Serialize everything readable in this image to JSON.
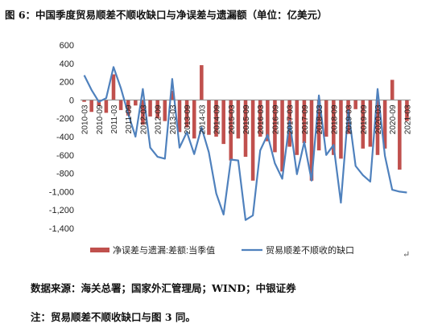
{
  "title": "图 6：中国季度贸易顺差不顺收缺口与净误差与遗漏额（单位：亿美元）",
  "source": "数据来源：海关总署；国家外汇管理局；WIND；中银证券",
  "note": "注：贸易顺差不顺收缺口与图 3 同。",
  "chart_data": {
    "type": "bar+line",
    "ylim": [
      -1400,
      600
    ],
    "yticks": [
      600,
      400,
      200,
      0,
      -200,
      -400,
      -600,
      -800,
      -1000,
      -1200,
      -1400
    ],
    "categories": [
      "2010-03",
      "2010-06",
      "2010-09",
      "2010-12",
      "2011-03",
      "2011-06",
      "2011-09",
      "2011-12",
      "2012-03",
      "2012-06",
      "2012-09",
      "2012-12",
      "2013-03",
      "2013-06",
      "2013-09",
      "2013-12",
      "2014-03",
      "2014-06",
      "2014-09",
      "2014-12",
      "2015-03",
      "2015-06",
      "2015-09",
      "2015-12",
      "2016-03",
      "2016-06",
      "2016-09",
      "2016-12",
      "2017-03",
      "2017-06",
      "2017-09",
      "2017-12",
      "2018-03",
      "2018-06",
      "2018-09",
      "2018-12",
      "2019-03",
      "2019-06",
      "2019-09",
      "2019-12",
      "2020-03",
      "2020-06",
      "2020-09",
      "2020-12",
      "2021-03"
    ],
    "xtick_labels": [
      "2010-03",
      "2010-09",
      "2011-03",
      "2011-09",
      "2012-03",
      "2012-09",
      "2013-03",
      "2013-09",
      "2014-03",
      "2014-09",
      "2015-03",
      "2015-09",
      "2016-03",
      "2016-09",
      "2017-03",
      "2017-09",
      "2018-03",
      "2018-09",
      "2019-03",
      "2019-09",
      "2020-03",
      "2020-09",
      "2021-03"
    ],
    "series": [
      {
        "name": "净误差与遗漏:差额:当季值",
        "type": "bar",
        "color": "#C0504D",
        "values": [
          -20,
          -130,
          -60,
          -140,
          280,
          -110,
          -170,
          -60,
          -270,
          -180,
          -200,
          -230,
          100,
          -350,
          -300,
          -420,
          380,
          -380,
          -400,
          -480,
          -660,
          -420,
          -620,
          -880,
          -400,
          -450,
          -570,
          -780,
          -510,
          -600,
          -470,
          -880,
          -550,
          -400,
          -600,
          -640,
          -370,
          -100,
          -530,
          -510,
          -600,
          -530,
          220,
          -760,
          -230
        ]
      },
      {
        "name": "贸易顺差不顺收的缺口",
        "type": "line",
        "color": "#4F81BD",
        "values": [
          270,
          110,
          -20,
          20,
          360,
          130,
          -150,
          -400,
          120,
          -520,
          -620,
          -640,
          230,
          -520,
          -350,
          -590,
          -300,
          -570,
          -1020,
          -1250,
          -650,
          -660,
          -1310,
          -1260,
          -550,
          -380,
          -690,
          -860,
          -230,
          -810,
          -460,
          -880,
          50,
          -600,
          -490,
          -1120,
          -110,
          -720,
          -820,
          -890,
          120,
          -610,
          -980,
          -1000,
          -1010
        ]
      }
    ],
    "legend": "bottom"
  }
}
